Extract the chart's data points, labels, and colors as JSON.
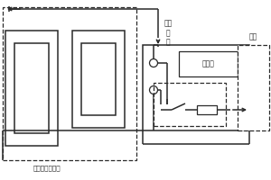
{
  "bg_color": "#ffffff",
  "line_color": "#2a2a2a",
  "dashed_color": "#2a2a2a",
  "text_color": "#2a2a2a",
  "label_mfc": "微生物燃料电池",
  "label_output_1": "输出",
  "label_output_2": "电",
  "label_output_3": "压",
  "label_display": "显示器",
  "label_alarm": "报警",
  "figsize": [
    3.0,
    2.0
  ],
  "dpi": 100
}
